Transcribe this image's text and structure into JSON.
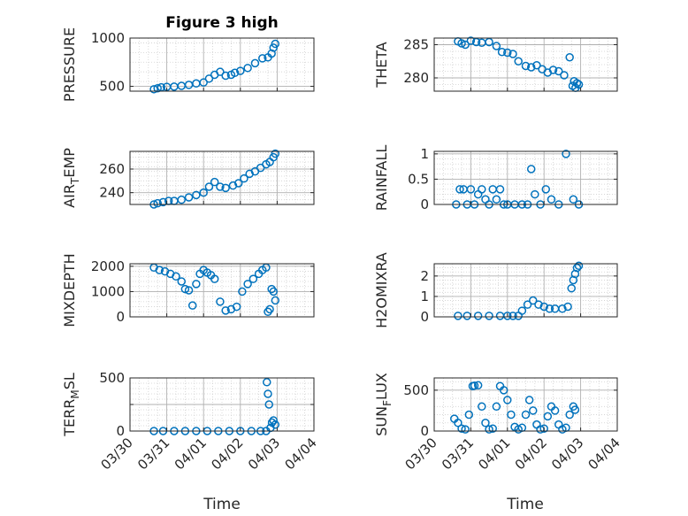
{
  "figure": {
    "title": "Figure 3 high",
    "x_axis_label": "Time",
    "x_tick_labels": [
      "03/30",
      "03/31",
      "04/01",
      "04/02",
      "04/03",
      "04/04"
    ],
    "marker_color": "#0072BD",
    "grid": "on (major + minor, dotted)"
  },
  "chart_data": [
    {
      "type": "scatter",
      "ylabel": "PRESSURE",
      "ylim": [
        450,
        1000
      ],
      "yticks": [
        500,
        1000
      ],
      "ytick_labels": [
        "500",
        "1000"
      ],
      "x": [
        0.65,
        0.75,
        0.85,
        1.0,
        1.2,
        1.4,
        1.6,
        1.8,
        2.0,
        2.15,
        2.3,
        2.45,
        2.6,
        2.75,
        2.85,
        3.0,
        3.2,
        3.4,
        3.6,
        3.75,
        3.85,
        3.9,
        3.95
      ],
      "y": [
        470,
        480,
        490,
        495,
        497,
        505,
        515,
        530,
        540,
        580,
        620,
        650,
        610,
        620,
        640,
        660,
        690,
        740,
        790,
        800,
        840,
        900,
        940
      ]
    },
    {
      "type": "scatter",
      "ylabel": "THETA",
      "ylim": [
        278,
        286
      ],
      "yticks": [
        280,
        285
      ],
      "ytick_labels": [
        "280",
        "285"
      ],
      "x": [
        0.65,
        0.75,
        0.85,
        1.0,
        1.15,
        1.3,
        1.5,
        1.7,
        1.85,
        2.0,
        2.15,
        2.3,
        2.5,
        2.65,
        2.8,
        2.95,
        3.1,
        3.25,
        3.4,
        3.55,
        3.7,
        3.78,
        3.82,
        3.86,
        3.9,
        3.95
      ],
      "y": [
        285.5,
        285.2,
        285.0,
        285.6,
        285.4,
        285.3,
        285.4,
        284.8,
        283.9,
        283.8,
        283.6,
        282.5,
        281.8,
        281.6,
        281.9,
        281.3,
        280.8,
        281.2,
        281.0,
        280.4,
        283.1,
        278.8,
        279.5,
        278.5,
        279.2,
        279.0
      ]
    },
    {
      "type": "scatter",
      "ylabel": "AIR_TEMP",
      "ylim": [
        230,
        275
      ],
      "yticks": [
        240,
        260
      ],
      "ytick_labels": [
        "240",
        "260"
      ],
      "x": [
        0.65,
        0.75,
        0.9,
        1.05,
        1.2,
        1.4,
        1.6,
        1.8,
        2.0,
        2.15,
        2.3,
        2.45,
        2.6,
        2.8,
        2.95,
        3.1,
        3.25,
        3.4,
        3.55,
        3.7,
        3.8,
        3.9,
        3.95
      ],
      "y": [
        230,
        231,
        232,
        233,
        233,
        234,
        236,
        238,
        240,
        245,
        249,
        245,
        244,
        246,
        248,
        252,
        256,
        258,
        261,
        264,
        266,
        270,
        273
      ]
    },
    {
      "type": "scatter",
      "ylabel": "RAINFALL",
      "ylim": [
        0,
        1.05
      ],
      "yticks": [
        0,
        0.5,
        1
      ],
      "ytick_labels": [
        "0",
        "0.5",
        "1"
      ],
      "x": [
        0.6,
        0.7,
        0.8,
        0.9,
        1.0,
        1.1,
        1.2,
        1.3,
        1.4,
        1.5,
        1.6,
        1.7,
        1.8,
        1.9,
        2.0,
        2.2,
        2.4,
        2.55,
        2.65,
        2.75,
        2.9,
        3.05,
        3.2,
        3.4,
        3.6,
        3.8,
        3.95
      ],
      "y": [
        0,
        0.3,
        0.3,
        0,
        0.3,
        0,
        0.2,
        0.3,
        0.1,
        0,
        0.3,
        0.1,
        0.3,
        0,
        0,
        0,
        0,
        0,
        0.7,
        0.2,
        0,
        0.3,
        0.1,
        0,
        1.0,
        0.1,
        0
      ]
    },
    {
      "type": "scatter",
      "ylabel": "MIXDEPTH",
      "ylim": [
        0,
        2100
      ],
      "yticks": [
        0,
        1000,
        2000
      ],
      "ytick_labels": [
        "0",
        "1000",
        "2000"
      ],
      "x": [
        0.65,
        0.8,
        0.95,
        1.1,
        1.25,
        1.4,
        1.5,
        1.6,
        1.7,
        1.8,
        1.9,
        2.0,
        2.1,
        2.2,
        2.3,
        2.45,
        2.6,
        2.75,
        2.9,
        3.05,
        3.2,
        3.35,
        3.5,
        3.6,
        3.7,
        3.75,
        3.8,
        3.85,
        3.9,
        3.95
      ],
      "y": [
        1950,
        1850,
        1800,
        1700,
        1600,
        1400,
        1100,
        1050,
        450,
        1300,
        1700,
        1850,
        1750,
        1650,
        1500,
        600,
        250,
        300,
        400,
        1000,
        1300,
        1500,
        1700,
        1850,
        1950,
        200,
        300,
        1100,
        1000,
        650
      ]
    },
    {
      "type": "scatter",
      "ylabel": "H2OMIXRA",
      "ylim": [
        0,
        2.6
      ],
      "yticks": [
        0,
        1,
        2
      ],
      "ytick_labels": [
        "0",
        "1",
        "2"
      ],
      "x": [
        0.65,
        0.9,
        1.2,
        1.5,
        1.8,
        2.0,
        2.15,
        2.3,
        2.4,
        2.55,
        2.7,
        2.85,
        3.0,
        3.15,
        3.3,
        3.5,
        3.65,
        3.75,
        3.8,
        3.85,
        3.9,
        3.95
      ],
      "y": [
        0.05,
        0.05,
        0.05,
        0.05,
        0.05,
        0.05,
        0.05,
        0.05,
        0.3,
        0.6,
        0.8,
        0.6,
        0.5,
        0.4,
        0.4,
        0.4,
        0.5,
        1.4,
        1.8,
        2.1,
        2.4,
        2.5
      ]
    },
    {
      "type": "scatter",
      "ylabel": "TERR_MSL",
      "ylim": [
        0,
        500
      ],
      "yticks": [
        0,
        250,
        500
      ],
      "ytick_labels": [
        "0",
        "",
        "500"
      ],
      "x": [
        0.65,
        0.9,
        1.2,
        1.5,
        1.8,
        2.1,
        2.4,
        2.7,
        3.0,
        3.3,
        3.55,
        3.7,
        3.72,
        3.75,
        3.78,
        3.82,
        3.86,
        3.9,
        3.95
      ],
      "y": [
        0,
        0,
        0,
        0,
        0,
        0,
        0,
        0,
        0,
        0,
        0,
        0,
        460,
        350,
        250,
        30,
        80,
        100,
        60
      ]
    },
    {
      "type": "scatter",
      "ylabel": "SUN_FLUX",
      "ylim": [
        0,
        650
      ],
      "yticks": [
        0,
        500
      ],
      "ytick_labels": [
        "0",
        "500"
      ],
      "x": [
        0.55,
        0.65,
        0.75,
        0.85,
        0.95,
        1.05,
        1.1,
        1.2,
        1.3,
        1.4,
        1.5,
        1.6,
        1.7,
        1.8,
        1.9,
        2.0,
        2.1,
        2.2,
        2.3,
        2.4,
        2.5,
        2.6,
        2.7,
        2.8,
        2.9,
        3.0,
        3.1,
        3.2,
        3.3,
        3.4,
        3.5,
        3.6,
        3.7,
        3.8,
        3.85
      ],
      "y": [
        150,
        100,
        30,
        20,
        200,
        550,
        555,
        560,
        300,
        100,
        20,
        30,
        300,
        550,
        500,
        380,
        200,
        50,
        20,
        40,
        200,
        380,
        250,
        80,
        20,
        30,
        180,
        300,
        250,
        80,
        20,
        40,
        200,
        300,
        260
      ]
    }
  ]
}
